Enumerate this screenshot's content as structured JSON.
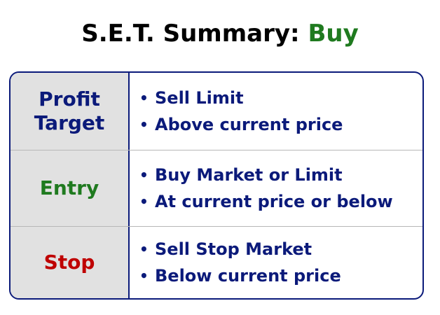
{
  "title": {
    "prefix": "S.E.T. Summary:",
    "accent": "Buy"
  },
  "colors": {
    "navy": "#0b1a7a",
    "green": "#1f7a1f",
    "red": "#bf0000",
    "label_bg": "#e1e1e1"
  },
  "bullet_glyph": "•",
  "rows": [
    {
      "label_line1": "Profit",
      "label_line2": "Target",
      "bullets": [
        "Sell Limit",
        "Above current price"
      ]
    },
    {
      "label_line1": "Entry",
      "bullets": [
        "Buy Market or Limit",
        "At current price or below"
      ]
    },
    {
      "label_line1": "Stop",
      "bullets": [
        "Sell Stop Market",
        "Below current price"
      ]
    }
  ]
}
